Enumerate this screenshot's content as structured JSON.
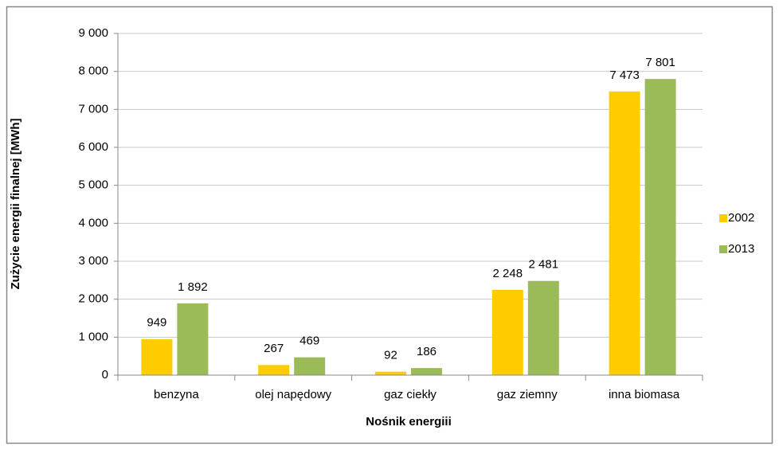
{
  "chart_data": {
    "type": "bar",
    "x_label": "Nośnik energiii",
    "y_label": "Zużycie energii finalnej [MWh]",
    "categories": [
      "benzyna",
      "olej napędowy",
      "gaz ciekły",
      "gaz ziemny",
      "inna biomasa"
    ],
    "series": [
      {
        "name": "2002",
        "color": "#ffcc00",
        "values": [
          949,
          267,
          92,
          2248,
          7473
        ],
        "value_labels": [
          "949",
          "267",
          "92",
          "2 248",
          "7 473"
        ]
      },
      {
        "name": "2013",
        "color": "#9bbb59",
        "values": [
          1892,
          469,
          186,
          2481,
          7801
        ],
        "value_labels": [
          "1 892",
          "469",
          "186",
          "2 481",
          "7 801"
        ]
      }
    ],
    "ylim": [
      0,
      9000
    ],
    "yticks": [
      0,
      {
        "value": 1000,
        "label": "1 000"
      },
      {
        "value": 2000,
        "label": "2 000"
      },
      {
        "value": 3000,
        "label": "3 000"
      },
      {
        "value": 4000,
        "label": "4 000"
      },
      {
        "value": 5000,
        "label": "5 000"
      },
      {
        "value": 6000,
        "label": "6 000"
      },
      {
        "value": 7000,
        "label": "7 000"
      },
      {
        "value": 8000,
        "label": "8 000"
      },
      {
        "value": 9000,
        "label": "9 000"
      }
    ],
    "grid": true,
    "legend": "right"
  }
}
